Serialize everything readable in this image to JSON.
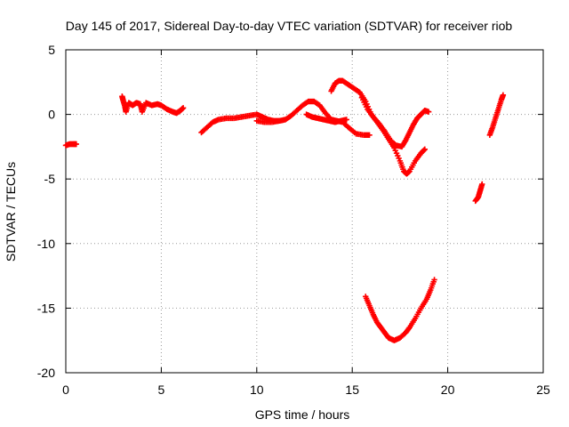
{
  "chart_data": {
    "type": "scatter",
    "title": "Day 145 of 2017, Sidereal Day-to-day VTEC variation (SDTVAR) for receiver riob",
    "xlabel": "GPS time / hours",
    "ylabel": "SDTVAR / TECUs",
    "xlim": [
      0,
      25
    ],
    "ylim": [
      -20,
      5
    ],
    "xticks": [
      0,
      5,
      10,
      15,
      20,
      25
    ],
    "yticks": [
      -20,
      -15,
      -10,
      -5,
      0,
      5
    ],
    "xtick_labels": [
      "0",
      "5",
      "10",
      "15",
      "20",
      "25"
    ],
    "ytick_labels": [
      "-20",
      "-15",
      "-10",
      "-5",
      "0",
      "5"
    ],
    "grid": true,
    "marker": "+",
    "color": "#ff0000",
    "series": [
      {
        "points": [
          [
            0.0,
            -2.4
          ],
          [
            0.2,
            -2.3
          ],
          [
            0.4,
            -2.3
          ],
          [
            0.55,
            -2.3
          ]
        ]
      },
      {
        "points": [
          [
            2.95,
            1.4
          ],
          [
            3.0,
            1.1
          ],
          [
            3.1,
            0.6
          ],
          [
            3.15,
            0.2
          ],
          [
            3.3,
            0.9
          ],
          [
            3.5,
            0.7
          ],
          [
            3.7,
            0.9
          ],
          [
            3.9,
            0.8
          ],
          [
            4.0,
            0.2
          ],
          [
            4.2,
            0.9
          ],
          [
            4.5,
            0.7
          ],
          [
            4.8,
            0.8
          ],
          [
            5.0,
            0.7
          ],
          [
            5.3,
            0.4
          ],
          [
            5.6,
            0.2
          ],
          [
            5.8,
            0.1
          ],
          [
            6.0,
            0.3
          ],
          [
            6.15,
            0.5
          ]
        ]
      },
      {
        "points": [
          [
            7.1,
            -1.4
          ],
          [
            7.4,
            -1.0
          ],
          [
            7.7,
            -0.6
          ],
          [
            8.0,
            -0.4
          ],
          [
            8.4,
            -0.3
          ],
          [
            8.8,
            -0.3
          ],
          [
            9.2,
            -0.2
          ],
          [
            9.6,
            -0.1
          ],
          [
            10.0,
            0.0
          ],
          [
            10.3,
            -0.2
          ],
          [
            10.6,
            -0.4
          ],
          [
            10.9,
            -0.5
          ],
          [
            11.2,
            -0.5
          ],
          [
            11.5,
            -0.4
          ],
          [
            11.8,
            -0.1
          ],
          [
            12.1,
            0.3
          ],
          [
            12.4,
            0.7
          ],
          [
            12.7,
            1.0
          ],
          [
            13.0,
            1.0
          ],
          [
            13.3,
            0.7
          ],
          [
            13.6,
            0.1
          ],
          [
            13.9,
            -0.4
          ],
          [
            14.2,
            -0.5
          ],
          [
            14.5,
            -0.6
          ],
          [
            14.8,
            -1.0
          ],
          [
            15.2,
            -1.5
          ],
          [
            15.6,
            -1.6
          ],
          [
            15.9,
            -1.6
          ]
        ]
      },
      {
        "points": [
          [
            10.0,
            -0.5
          ],
          [
            10.4,
            -0.6
          ],
          [
            10.8,
            -0.6
          ],
          [
            11.2,
            -0.5
          ]
        ]
      },
      {
        "points": [
          [
            12.6,
            0.0
          ],
          [
            12.9,
            -0.2
          ],
          [
            13.2,
            -0.3
          ],
          [
            13.5,
            -0.4
          ],
          [
            13.8,
            -0.5
          ],
          [
            14.1,
            -0.6
          ],
          [
            14.4,
            -0.5
          ],
          [
            14.7,
            -0.4
          ]
        ]
      },
      {
        "points": [
          [
            13.9,
            1.8
          ],
          [
            14.1,
            2.4
          ],
          [
            14.3,
            2.6
          ],
          [
            14.5,
            2.6
          ],
          [
            14.8,
            2.3
          ],
          [
            15.1,
            2.0
          ],
          [
            15.4,
            1.7
          ],
          [
            15.7,
            1.0
          ],
          [
            16.0,
            0.0
          ],
          [
            16.3,
            -0.6
          ],
          [
            16.6,
            -1.2
          ],
          [
            16.9,
            -1.9
          ],
          [
            17.2,
            -2.6
          ],
          [
            17.5,
            -3.6
          ],
          [
            17.7,
            -4.4
          ],
          [
            17.85,
            -4.6
          ],
          [
            18.0,
            -4.4
          ],
          [
            18.3,
            -3.6
          ],
          [
            18.6,
            -3.0
          ],
          [
            18.8,
            -2.7
          ]
        ]
      },
      {
        "points": [
          [
            15.5,
            1.3
          ],
          [
            15.8,
            0.4
          ],
          [
            16.1,
            -0.2
          ],
          [
            16.4,
            -0.7
          ],
          [
            16.7,
            -1.3
          ],
          [
            17.0,
            -2.0
          ],
          [
            17.3,
            -2.4
          ],
          [
            17.6,
            -2.5
          ],
          [
            17.8,
            -2.0
          ],
          [
            18.0,
            -1.4
          ],
          [
            18.2,
            -0.8
          ],
          [
            18.4,
            -0.3
          ],
          [
            18.6,
            0.0
          ],
          [
            18.8,
            0.3
          ],
          [
            19.0,
            0.2
          ]
        ]
      },
      {
        "points": [
          [
            15.7,
            -14.1
          ],
          [
            15.9,
            -14.8
          ],
          [
            16.1,
            -15.5
          ],
          [
            16.3,
            -16.1
          ],
          [
            16.5,
            -16.5
          ],
          [
            16.7,
            -16.9
          ],
          [
            16.9,
            -17.3
          ],
          [
            17.2,
            -17.5
          ],
          [
            17.5,
            -17.3
          ],
          [
            17.8,
            -16.9
          ],
          [
            18.0,
            -16.5
          ],
          [
            18.3,
            -15.8
          ],
          [
            18.6,
            -15.0
          ],
          [
            18.9,
            -14.3
          ],
          [
            19.1,
            -13.6
          ],
          [
            19.3,
            -12.8
          ]
        ]
      },
      {
        "points": [
          [
            21.45,
            -6.7
          ],
          [
            21.6,
            -6.4
          ],
          [
            21.7,
            -5.9
          ],
          [
            21.8,
            -5.4
          ]
        ]
      },
      {
        "points": [
          [
            22.2,
            -1.6
          ],
          [
            22.35,
            -1.0
          ],
          [
            22.5,
            -0.3
          ],
          [
            22.65,
            0.4
          ],
          [
            22.8,
            1.1
          ],
          [
            22.9,
            1.5
          ]
        ]
      }
    ]
  }
}
